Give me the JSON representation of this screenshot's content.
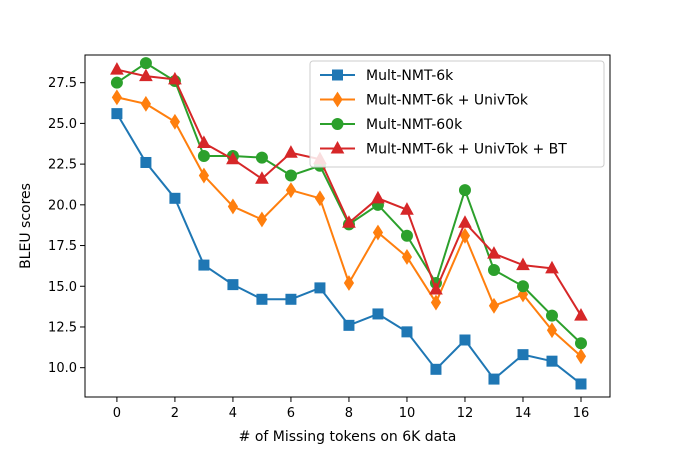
{
  "chart_data": {
    "type": "line",
    "title": "",
    "xlabel": "# of Missing tokens on 6K data",
    "ylabel": "BLEU scores",
    "xlim": [
      -1.1,
      17.0
    ],
    "ylim": [
      8.2,
      29.2
    ],
    "xticks": [
      0,
      2,
      4,
      6,
      8,
      10,
      12,
      14,
      16
    ],
    "yticks": [
      10.0,
      12.5,
      15.0,
      17.5,
      20.0,
      22.5,
      25.0,
      27.5
    ],
    "xtick_labels": [
      "0",
      "2",
      "4",
      "6",
      "8",
      "10",
      "12",
      "14",
      "16"
    ],
    "ytick_labels": [
      "10.0",
      "12.5",
      "15.0",
      "17.5",
      "20.0",
      "22.5",
      "25.0",
      "27.5"
    ],
    "grid": false,
    "legend_position": "top-right",
    "x": [
      0,
      1,
      2,
      3,
      4,
      5,
      6,
      7,
      8,
      9,
      10,
      11,
      12,
      13,
      14,
      15,
      16
    ],
    "series": [
      {
        "name": "Mult-NMT-6k",
        "color": "#1f77b4",
        "marker": "square",
        "values": [
          25.6,
          22.6,
          20.4,
          16.3,
          15.1,
          14.2,
          14.2,
          14.9,
          12.6,
          13.3,
          12.2,
          9.9,
          11.7,
          9.3,
          10.8,
          10.4,
          9.0
        ]
      },
      {
        "name": "Mult-NMT-6k + UnivTok",
        "color": "#ff7f0e",
        "marker": "diamond",
        "values": [
          26.6,
          26.2,
          25.1,
          21.8,
          19.9,
          19.1,
          20.9,
          20.4,
          15.2,
          18.3,
          16.8,
          14.0,
          18.1,
          13.8,
          14.5,
          12.3,
          10.7
        ]
      },
      {
        "name": "Mult-NMT-60k",
        "color": "#2ca02c",
        "marker": "circle",
        "values": [
          27.5,
          28.7,
          27.6,
          23.0,
          23.0,
          22.9,
          21.8,
          22.4,
          18.8,
          20.0,
          18.1,
          15.2,
          20.9,
          16.0,
          15.0,
          13.2,
          11.5
        ]
      },
      {
        "name": "Mult-NMT-6k + UnivTok + BT",
        "color": "#d62728",
        "marker": "triangle",
        "values": [
          28.3,
          27.9,
          27.7,
          23.8,
          22.8,
          21.6,
          23.2,
          22.8,
          18.9,
          20.4,
          19.7,
          14.8,
          18.9,
          17.0,
          16.3,
          16.1,
          13.2
        ]
      }
    ]
  }
}
